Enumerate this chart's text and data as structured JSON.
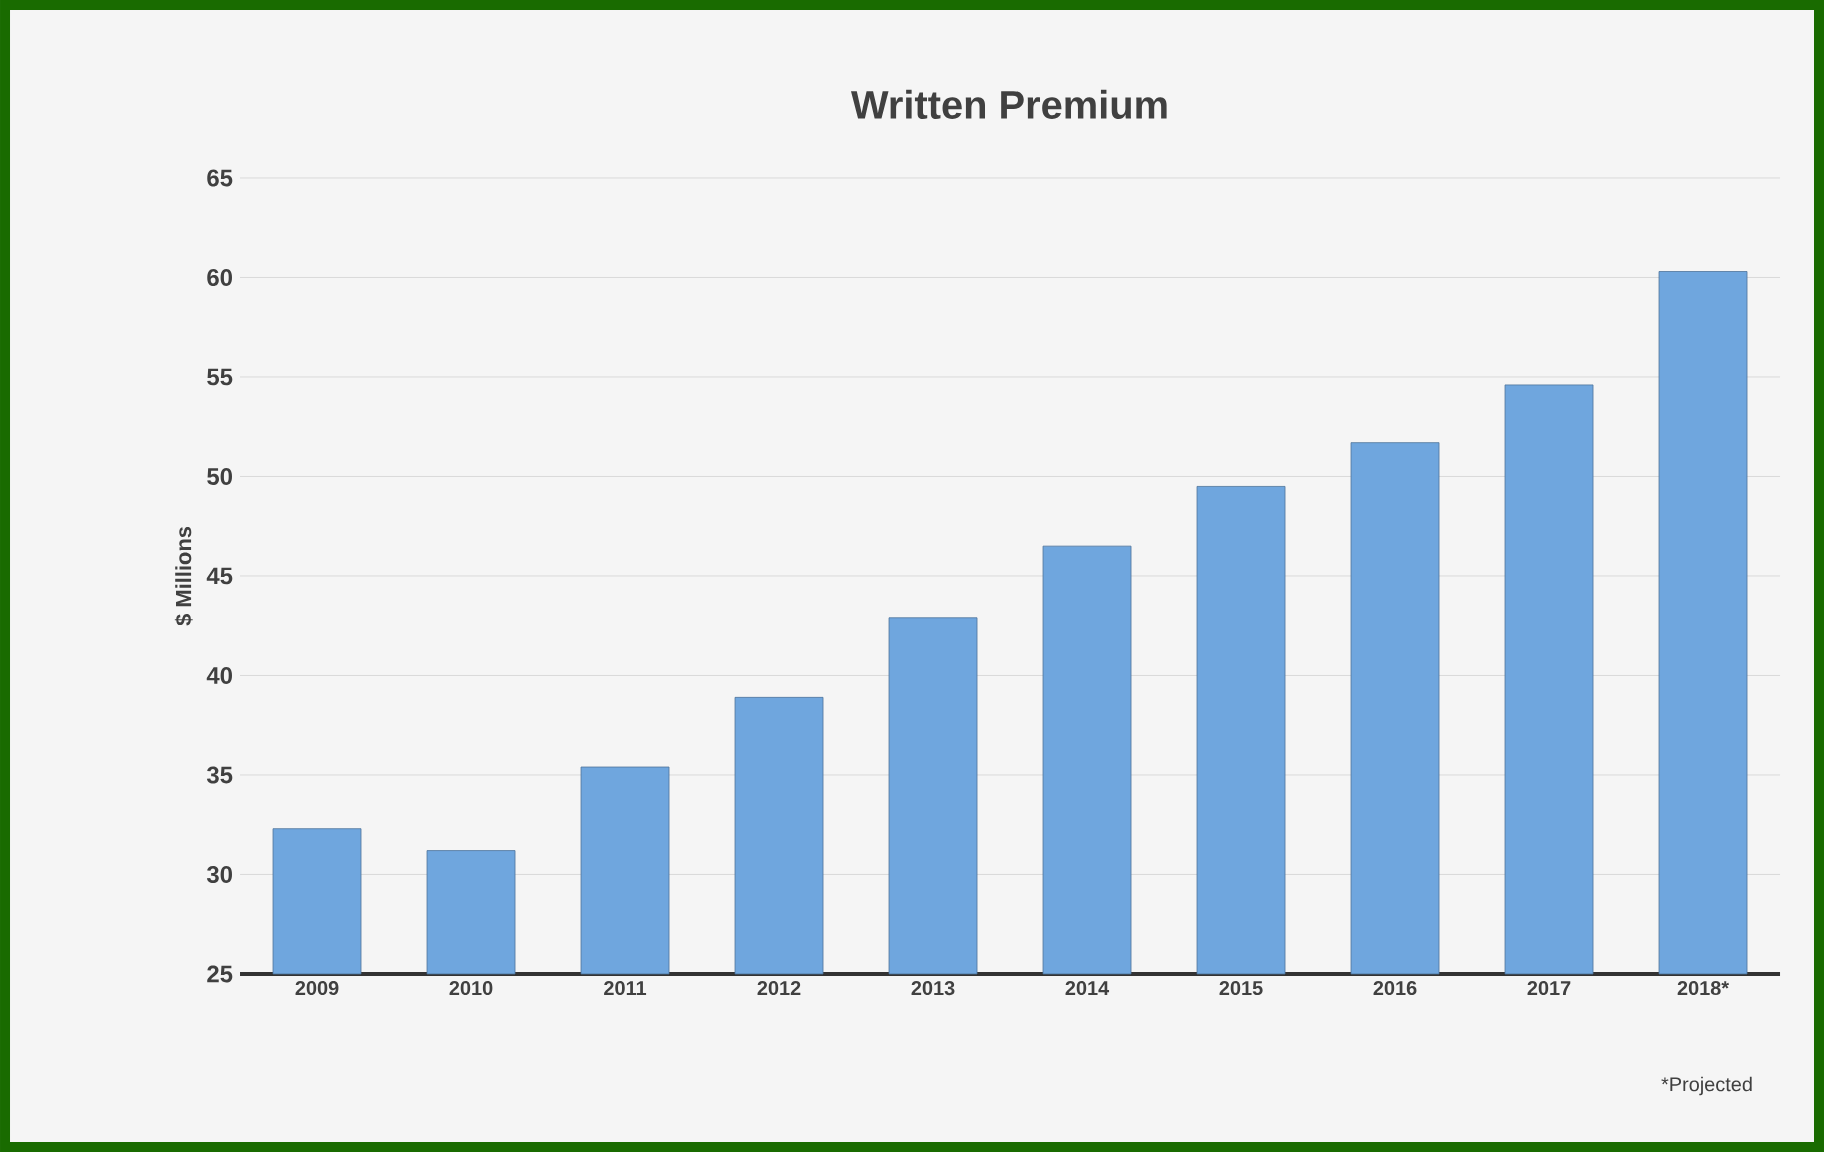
{
  "chart_data": {
    "type": "bar",
    "title": "Written Premium",
    "ylabel": "$ Millions",
    "categories": [
      "2009",
      "2010",
      "2011",
      "2012",
      "2013",
      "2014",
      "2015",
      "2016",
      "2017",
      "2018*"
    ],
    "values": [
      32.3,
      31.2,
      35.4,
      38.9,
      42.9,
      46.5,
      49.5,
      51.7,
      54.6,
      60.3
    ],
    "color": "#6fa6de",
    "ylim": [
      25,
      65
    ],
    "yticks": [
      25,
      30,
      35,
      40,
      45,
      50,
      55,
      60,
      65
    ],
    "grid": "y",
    "annotations": [
      "*Projected"
    ]
  }
}
